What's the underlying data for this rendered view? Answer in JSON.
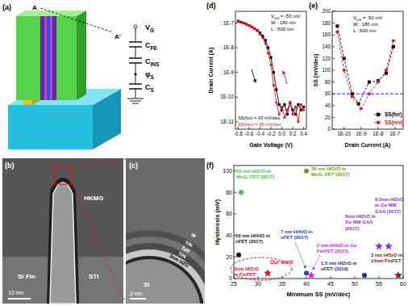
{
  "figure": {
    "a": {
      "label": "(a)",
      "cut_labels": [
        "A",
        "A'"
      ],
      "circuit": [
        [
          "V",
          {
            "sub": "G"
          }
        ],
        [
          "C",
          {
            "sub": "FE"
          }
        ],
        [
          "C",
          {
            "sub": "INS"
          }
        ],
        [
          "φ",
          {
            "sub": "S"
          }
        ],
        [
          "C",
          {
            "sub": "S"
          }
        ]
      ]
    },
    "b": {
      "label": "(b)",
      "texts": [
        "HKMG",
        "Si Fin",
        "STI"
      ],
      "scale_bar": "10 nm"
    },
    "c": {
      "label": "(c)",
      "layers": [
        "W",
        "TiN",
        "TaN",
        "TiN",
        "3nm HZO"
      ],
      "substrate": "Si",
      "scale_bar": "3 nm"
    }
  },
  "chart_data": [
    {
      "panel": "(d)",
      "type": "line",
      "x_label": "Gate Voltage (V)",
      "y_label": "Drain Current (A)",
      "log": "y",
      "x": [
        -0.8,
        -0.75,
        -0.7,
        -0.65,
        -0.6,
        -0.55,
        -0.5,
        -0.45,
        -0.4,
        -0.35,
        -0.3,
        -0.25,
        -0.2,
        -0.15,
        -0.1,
        -0.05,
        0,
        0.05,
        0.1,
        0.15,
        0.2,
        0.25,
        0.3,
        0.35,
        0.4
      ],
      "xlim": [
        -0.85,
        0.45
      ],
      "xticks": [
        -0.8,
        -0.6,
        -0.4,
        -0.2,
        {
          "value": 0,
          "label": "0.0"
        },
        0.2,
        0.4
      ],
      "ylim": [
        5e-12,
        3e-07
      ],
      "yticks": [
        {
          "value": 1e-11,
          "label": "1E-11"
        },
        {
          "value": 1e-10,
          "label": "1E-10"
        },
        {
          "value": 1e-09,
          "label": "1E-9"
        },
        {
          "value": 1e-08,
          "label": "1E-8"
        },
        {
          "value": 1e-07,
          "label": "1E-7"
        }
      ],
      "series": [
        {
          "color": "#000000",
          "marker": "square",
          "values": [
            1.2e-07,
            1.1e-07,
            1e-07,
            9e-08,
            8e-08,
            7e-08,
            6e-08,
            5e-08,
            4e-08,
            3e-08,
            2e-08,
            1e-08,
            4e-09,
            1e-09,
            2e-10,
            5e-11,
            3e-11,
            5e-11,
            2e-11,
            6e-11,
            3e-11,
            2e-11,
            5e-11,
            3e-11,
            4e-11
          ]
        },
        {
          "color": "#e8141e",
          "marker": "circle",
          "values": [
            1.2e-07,
            1.1e-07,
            1e-07,
            9e-08,
            8e-08,
            7e-08,
            6e-08,
            5e-08,
            3.5e-08,
            2.5e-08,
            1.5e-08,
            6e-09,
            2e-09,
            3e-10,
            6e-11,
            2e-11,
            4e-11,
            1.5e-11,
            3e-11,
            6e-11,
            2e-11,
            4e-11,
            1e-11,
            5e-11,
            3e-11
          ]
        }
      ],
      "annotations": [
        [
          "V",
          {
            "sub": "DS"
          },
          " = -50 mV"
        ],
        "W : 180 nm",
        "L : 500 nm",
        "SS(for) = 43 mV/dec",
        "SS(rev) = 35 mV/dec"
      ]
    },
    {
      "panel": "(e)",
      "type": "line",
      "x_label": "Drain Current (A)",
      "y_label": "SS (mV/dec)",
      "log": "x",
      "xlim": [
        2e-11,
        3e-07
      ],
      "xticks": [
        {
          "value": 1e-10,
          "label": "1E-10"
        },
        {
          "value": 1e-09,
          "label": "1E-9"
        },
        {
          "value": 1e-08,
          "label": "1E-8"
        },
        {
          "value": 1e-07,
          "label": "1E-7"
        }
      ],
      "ylim": [
        0,
        200
      ],
      "yticks": [
        0,
        20,
        40,
        60,
        80,
        100,
        120,
        140,
        160,
        180,
        200
      ],
      "legend": "lower right",
      "series": [
        {
          "name": "SS(for)",
          "color": "#000000",
          "marker": "square",
          "line_style": "dashed",
          "x": [
            4e-11,
            1e-10,
            3e-10,
            7e-10,
            3e-09,
            1e-08,
            3e-08,
            8e-08
          ],
          "values": [
            175,
            120,
            60,
            43,
            80,
            82,
            95,
            140
          ]
        },
        {
          "name": "SS(rev)",
          "color": "#e8141e",
          "marker": "circle",
          "line_style": "dashed",
          "x": [
            4e-11,
            1e-10,
            3e-10,
            1e-09,
            3e-09,
            1e-08,
            3e-08,
            8e-08
          ],
          "values": [
            165,
            100,
            55,
            35,
            60,
            80,
            100,
            150
          ]
        }
      ],
      "reference_lines": [
        {
          "value": 60,
          "color": "#2233cc",
          "line_style": "dashed"
        }
      ],
      "annotations": [
        [
          "V",
          {
            "sub": "DS"
          },
          " = -50 mV"
        ],
        "W : 180 nm",
        "L : 500 nm"
      ]
    },
    {
      "panel": "(f)",
      "type": "scatter",
      "x_label": "Minimum SS (mV/dec)",
      "y_label": "Hysteresis (mV)",
      "xlim": [
        25,
        60
      ],
      "xticks": [
        25,
        30,
        35,
        40,
        45,
        50,
        55,
        60
      ],
      "ylim": [
        0,
        105
      ],
      "yticks": [
        0,
        20,
        40,
        60,
        80,
        100
      ],
      "series": [
        {
          "name": "20 nm HfZrO in MoS₂ FET (2017)",
          "color": "#3cc83c",
          "marker": "circle",
          "x": [
            26.5
          ],
          "values": [
            80
          ]
        },
        {
          "name": "20 nm HfZrO in MoS₂ FET (2017)",
          "color": "#6f9a1a",
          "marker": "circle",
          "x": [
            40
          ],
          "values": [
            100
          ]
        },
        {
          "name": "10 nm HfAlO in nFET (2017)",
          "color": "#111111",
          "marker": "circle",
          "x": [
            26
          ],
          "values": [
            22
          ]
        },
        {
          "name": "3nm HfZrO in FinFET",
          "color": "#e8141e",
          "marker": "star",
          "x": [
            32
          ],
          "values": [
            5
          ]
        },
        {
          "name": "7 nm HfAlO in nFET (2017)",
          "color": "#2040d0",
          "marker": "circle",
          "x": [
            40
          ],
          "values": [
            5
          ]
        },
        {
          "name": "2 nm HfAlO in Ge FinFET (2017)",
          "color": "#e020e0",
          "marker": "star",
          "x": [
            41
          ],
          "values": [
            3
          ]
        },
        {
          "name": "1.5 nm HfZrO in nFET (2016)",
          "color": "#1a2a8a",
          "marker": "circle",
          "x": [
            52
          ],
          "values": [
            3
          ]
        },
        {
          "name": "6nm HfZrO in Ge NW GAA (2017)",
          "color": "#8a2be2",
          "marker": "star",
          "x": [
            55
          ],
          "values": [
            30
          ]
        },
        {
          "name": "6.5nm HfZrO in Ge NW GAA (2017)",
          "color": "#8a2be2",
          "marker": "star",
          "x": [
            57
          ],
          "values": [
            30
          ]
        },
        {
          "name": "3 nm HfSiO in 14nm FinFET",
          "color": "#8b1010",
          "marker": "star",
          "x": [
            59
          ],
          "values": [
            3
          ]
        }
      ],
      "annotations": [
        "Our work"
      ]
    }
  ]
}
